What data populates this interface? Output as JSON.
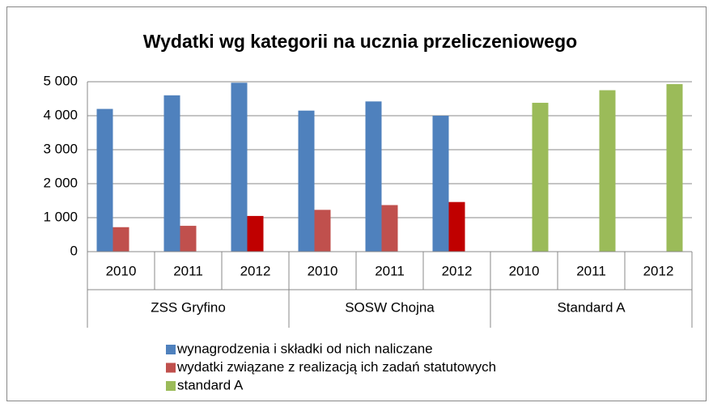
{
  "chart_data": {
    "type": "bar",
    "title": "Wydatki wg kategorii na ucznia przeliczeniowego",
    "categories": [
      "2010",
      "2011",
      "2012",
      "2010",
      "2011",
      "2012",
      "2010",
      "2011",
      "2012"
    ],
    "groups": [
      "ZSS Gryfino",
      "SOSW Chojna",
      "Standard A"
    ],
    "series": [
      {
        "name": "wynagrodzenia i składki od nich naliczane",
        "color": "#4f81bd",
        "values": [
          4200,
          4600,
          4970,
          4150,
          4420,
          4000,
          null,
          null,
          null
        ]
      },
      {
        "name": "wydatki związane z realizacją ich zadań statutowych",
        "color": "#c0504d",
        "colors": [
          null,
          null,
          "#c00000",
          null,
          null,
          "#c00000",
          null,
          null,
          null
        ],
        "values": [
          720,
          760,
          1050,
          1230,
          1370,
          1460,
          null,
          null,
          null
        ]
      },
      {
        "name": "standard A",
        "color": "#9bbb59",
        "values": [
          null,
          null,
          null,
          null,
          null,
          null,
          4380,
          4750,
          4930
        ]
      }
    ],
    "ylim": [
      0,
      5000
    ],
    "yticks": [
      0,
      {
        "value": 1000,
        "label": "1 000"
      },
      {
        "value": 2000,
        "label": "2 000"
      },
      {
        "value": 3000,
        "label": "3 000"
      },
      {
        "value": 4000,
        "label": "4 000"
      },
      {
        "value": 5000,
        "label": "5 000"
      }
    ],
    "grid": true,
    "legend": "bottom"
  }
}
